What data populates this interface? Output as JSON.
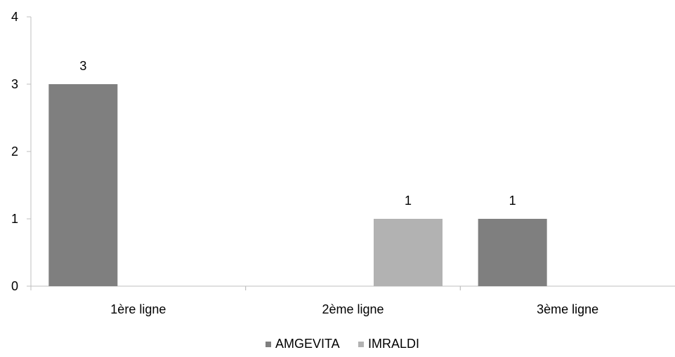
{
  "chart_data": {
    "type": "bar",
    "categories": [
      "1ère ligne",
      "2ème ligne",
      "3ème ligne"
    ],
    "series": [
      {
        "name": "AMGEVITA",
        "color": "#7f7f7f",
        "values": [
          3,
          0,
          1
        ]
      },
      {
        "name": "IMRALDI",
        "color": "#b2b2b2",
        "values": [
          0,
          1,
          0
        ]
      }
    ],
    "bar_order": [
      {
        "series": 0,
        "category": 0
      },
      {
        "series": 1,
        "category": 1
      },
      {
        "series": 0,
        "category": 2
      }
    ],
    "data_labels": [
      "3",
      "1",
      "1"
    ],
    "yticks": [
      "0",
      "1",
      "2",
      "3",
      "4"
    ],
    "ylim": [
      0,
      4
    ],
    "title": "",
    "xlabel": "",
    "ylabel": "",
    "grid": false,
    "legend_position": "bottom"
  }
}
